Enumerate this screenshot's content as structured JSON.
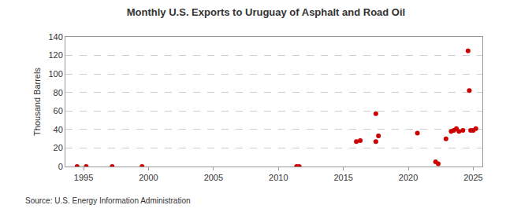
{
  "chart_data": {
    "type": "scatter",
    "title": "Monthly U.S. Exports to Uruguay of Asphalt and Road Oil",
    "y_label": "Thousand Barrels",
    "annotations": [
      "Source: U.S. Energy Information Administration"
    ],
    "x": [
      1994.5,
      1995.2,
      1997.2,
      1999.5,
      2011.4,
      2011.6,
      2016.0,
      2016.3,
      2017.5,
      2017.5,
      2017.7,
      2020.7,
      2022.1,
      2022.3,
      2022.9,
      2023.3,
      2023.5,
      2023.7,
      2023.9,
      2024.2,
      2024.6,
      2024.7,
      2024.8,
      2025.0,
      2025.2
    ],
    "values": [
      0,
      0,
      0,
      0,
      0,
      0,
      27,
      28,
      57,
      27,
      33,
      36,
      5,
      3,
      30,
      38,
      39,
      41,
      38,
      39,
      125,
      82,
      39,
      39,
      41
    ],
    "color": "#cc0000",
    "marker": "circle",
    "xlim": [
      1993.6,
      2025.7
    ],
    "xticks": [
      1995,
      2000,
      2005,
      2010,
      2015,
      2020,
      2025
    ],
    "ylim": [
      0,
      140
    ],
    "yticks": [
      0,
      20,
      40,
      60,
      80,
      100,
      120,
      140
    ],
    "grid": true
  }
}
